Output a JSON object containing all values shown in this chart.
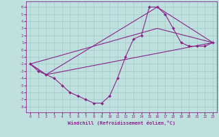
{
  "xlabel": "Windchill (Refroidissement éolien,°C)",
  "xlim": [
    -0.5,
    23.5
  ],
  "ylim": [
    -8.8,
    6.8
  ],
  "xticks": [
    0,
    1,
    2,
    3,
    4,
    5,
    6,
    7,
    8,
    9,
    10,
    11,
    12,
    13,
    14,
    15,
    16,
    17,
    18,
    19,
    20,
    21,
    22,
    23
  ],
  "yticks": [
    6,
    5,
    4,
    3,
    2,
    1,
    0,
    -1,
    -2,
    -3,
    -4,
    -5,
    -6,
    -7,
    -8
  ],
  "background_color": "#c0e0e0",
  "line_color": "#882288",
  "grid_color": "#a0c8c8",
  "curve1_x": [
    0,
    1,
    2,
    3,
    4,
    5,
    6,
    7,
    8,
    9,
    10,
    11,
    12,
    13,
    14,
    15,
    16,
    17,
    18,
    19,
    20,
    21,
    22,
    23
  ],
  "curve1_y": [
    -2,
    -3,
    -3.5,
    -4,
    -5,
    -6,
    -6.5,
    -7,
    -7.5,
    -7.5,
    -6.5,
    -4,
    -1,
    1.5,
    2,
    6,
    6,
    5,
    3,
    1,
    0.5,
    0.5,
    0.5,
    1
  ],
  "curve2_x": [
    0,
    2,
    23
  ],
  "curve2_y": [
    -2,
    -3.5,
    1
  ],
  "curve3_x": [
    0,
    2,
    16,
    23
  ],
  "curve3_y": [
    -2,
    -3.5,
    6,
    1
  ],
  "curve4_x": [
    0,
    16,
    23
  ],
  "curve4_y": [
    -2,
    3,
    1
  ]
}
